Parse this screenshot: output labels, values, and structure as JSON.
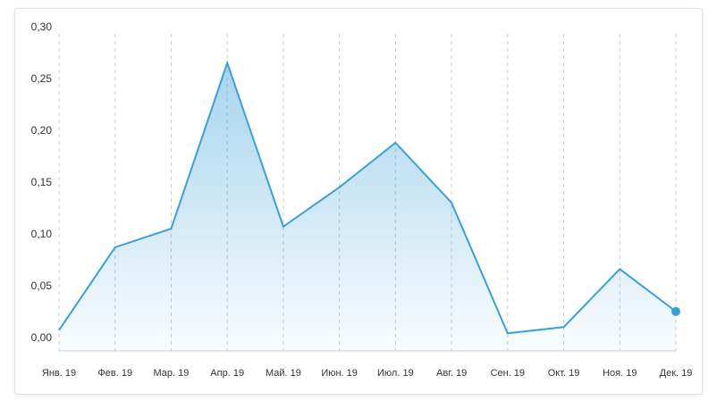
{
  "chart_data": {
    "type": "area",
    "categories": [
      "Янв. 19",
      "Фев. 19",
      "Мар. 19",
      "Апр. 19",
      "Май. 19",
      "Июн. 19",
      "Июл. 19",
      "Авг. 19",
      "Сен. 19",
      "Окт. 19",
      "Ноя. 19",
      "Дек. 19"
    ],
    "values": [
      0.014,
      0.094,
      0.112,
      0.272,
      0.114,
      0.152,
      0.195,
      0.137,
      0.011,
      0.017,
      0.073,
      0.032
    ],
    "color": "#3aa0d8",
    "ylim": [
      0,
      0.3
    ],
    "yticks": [
      {
        "value": 0,
        "label": "0,00"
      },
      {
        "value": 0.05,
        "label": "0,05"
      },
      {
        "value": 0.1,
        "label": "0,10"
      },
      {
        "value": 0.15,
        "label": "0,15"
      },
      {
        "value": 0.2,
        "label": "0,20"
      },
      {
        "value": 0.25,
        "label": "0,25"
      },
      {
        "value": 0.3,
        "label": "0,30"
      }
    ],
    "grid": true
  }
}
